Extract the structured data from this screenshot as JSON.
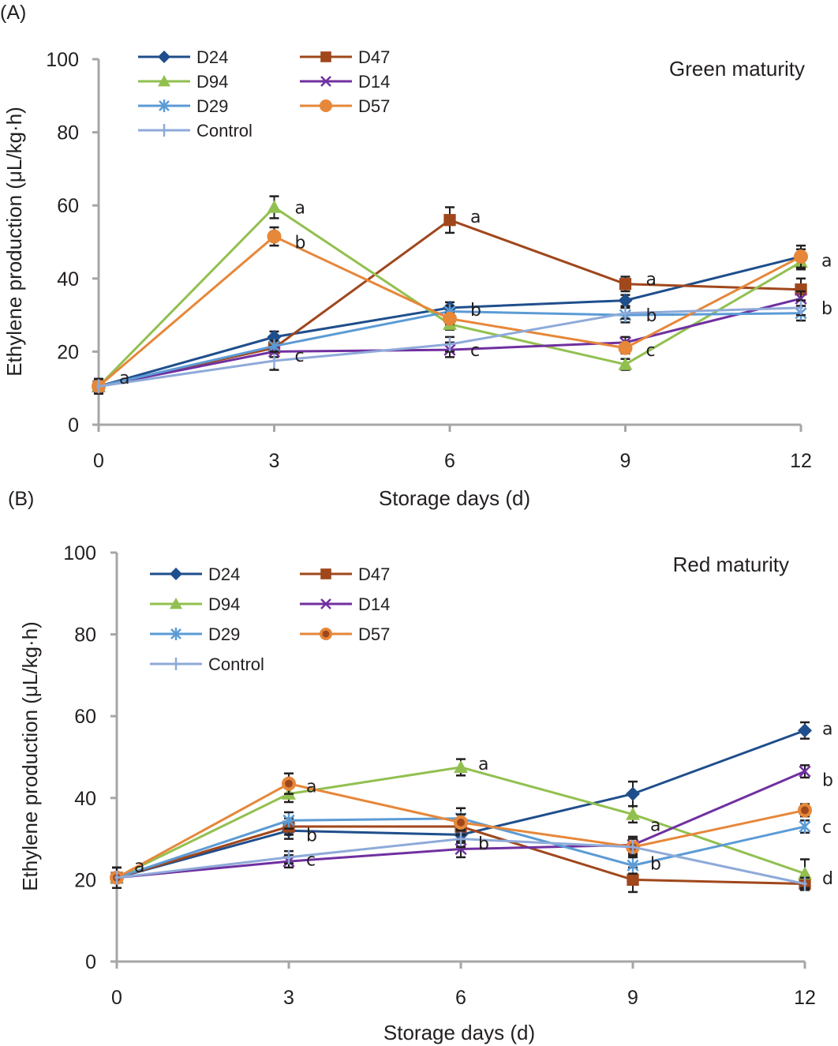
{
  "chart_data": [
    {
      "type": "line",
      "panel_label": "(A)",
      "title": "Green maturity",
      "xlabel": "Storage days (d)",
      "ylabel": "Ethylene production (μL/kg·h)",
      "x": [
        0,
        3,
        6,
        9,
        12
      ],
      "x_tick_labels": [
        "0",
        "3",
        "6",
        "9",
        "12"
      ],
      "y_tick_labels": [
        "0",
        "20",
        "40",
        "60",
        "80",
        "100"
      ],
      "ylim": [
        0,
        100
      ],
      "xlim": [
        0,
        12
      ],
      "grid": false,
      "legend_position": "top-left",
      "series": [
        {
          "name": "D24",
          "color": "#1f4e8c",
          "marker": "diamond",
          "values": [
            10.5,
            24,
            32,
            34,
            46
          ],
          "errors": [
            2,
            1.5,
            1.5,
            1.5,
            2
          ]
        },
        {
          "name": "D47",
          "color": "#a0471c",
          "marker": "square",
          "values": [
            10.5,
            21,
            56,
            38.5,
            37
          ],
          "errors": [
            2,
            1.5,
            3.5,
            2,
            3
          ]
        },
        {
          "name": "D94",
          "color": "#92c050",
          "marker": "triangle",
          "values": [
            10.5,
            59.5,
            27.5,
            16.5,
            44.5
          ],
          "errors": [
            2,
            3,
            1.5,
            1.5,
            2
          ]
        },
        {
          "name": "D14",
          "color": "#7030a0",
          "marker": "x",
          "values": [
            10.5,
            20,
            20.5,
            22.5,
            34.5
          ],
          "errors": [
            2,
            1.5,
            2,
            1.5,
            2
          ]
        },
        {
          "name": "D29",
          "color": "#5b9bd5",
          "marker": "asterisk",
          "values": [
            10.5,
            21.5,
            31,
            30,
            30.5
          ],
          "errors": [
            2,
            1.5,
            1.5,
            2,
            2
          ]
        },
        {
          "name": "D57",
          "color": "#e6873a",
          "marker": "circle",
          "values": [
            10.5,
            51.5,
            29,
            21,
            46
          ],
          "errors": [
            2,
            2.5,
            1.5,
            1.5,
            3
          ]
        },
        {
          "name": "Control",
          "color": "#8eaad9",
          "marker": "plus",
          "values": [
            10.5,
            17.5,
            22,
            30.5,
            32
          ],
          "errors": [
            2,
            2.5,
            2,
            1.5,
            2
          ]
        }
      ],
      "annotations": [
        {
          "x": 0,
          "y": 13,
          "text": "a"
        },
        {
          "x": 3,
          "y": 59.5,
          "text": "a"
        },
        {
          "x": 3,
          "y": 50,
          "text": "b"
        },
        {
          "x": 3,
          "y": 19,
          "text": "c"
        },
        {
          "x": 6,
          "y": 57,
          "text": "a"
        },
        {
          "x": 6,
          "y": 31.5,
          "text": "b"
        },
        {
          "x": 6,
          "y": 20.5,
          "text": "c"
        },
        {
          "x": 9,
          "y": 40,
          "text": "a"
        },
        {
          "x": 9,
          "y": 30,
          "text": "b"
        },
        {
          "x": 9,
          "y": 20.5,
          "text": "c"
        },
        {
          "x": 12,
          "y": 45,
          "text": "a"
        },
        {
          "x": 12,
          "y": 32,
          "text": "b"
        }
      ]
    },
    {
      "type": "line",
      "panel_label": "(B)",
      "title": "Red maturity",
      "xlabel": "Storage days (d)",
      "ylabel": "Ethylene production (μL/kg·h)",
      "x": [
        0,
        3,
        6,
        9,
        12
      ],
      "x_tick_labels": [
        "0",
        "3",
        "6",
        "9",
        "12"
      ],
      "y_tick_labels": [
        "0",
        "20",
        "40",
        "60",
        "80",
        "100"
      ],
      "ylim": [
        0,
        100
      ],
      "xlim": [
        0,
        12
      ],
      "grid": false,
      "legend_position": "top-left",
      "series": [
        {
          "name": "D24",
          "color": "#1f4e8c",
          "marker": "diamond",
          "values": [
            20.5,
            32,
            31,
            41,
            56.5
          ],
          "errors": [
            2.5,
            2,
            2,
            3,
            2
          ]
        },
        {
          "name": "D47",
          "color": "#a0471c",
          "marker": "square",
          "values": [
            20.5,
            33,
            33,
            20,
            19
          ],
          "errors": [
            2.5,
            2,
            2,
            3,
            1.5
          ]
        },
        {
          "name": "D94",
          "color": "#92c050",
          "marker": "triangle",
          "values": [
            20.5,
            41,
            47.5,
            36,
            21.5
          ],
          "errors": [
            2.5,
            2,
            2,
            2,
            3.5
          ]
        },
        {
          "name": "D14",
          "color": "#7030a0",
          "marker": "x",
          "values": [
            20.5,
            24.5,
            27.5,
            28.5,
            46.5
          ],
          "errors": [
            2.5,
            1.5,
            2,
            2,
            1.5
          ]
        },
        {
          "name": "D29",
          "color": "#5b9bd5",
          "marker": "asterisk",
          "values": [
            20.5,
            34.5,
            35,
            23.5,
            33
          ],
          "errors": [
            2.5,
            2,
            2.5,
            2,
            1.5
          ]
        },
        {
          "name": "D57",
          "color": "#e6873a",
          "marker": "circle-dot",
          "values": [
            20.5,
            43.5,
            34,
            28,
            37
          ],
          "errors": [
            2.5,
            2.5,
            2,
            2.5,
            1.5
          ]
        },
        {
          "name": "Control",
          "color": "#8eaad9",
          "marker": "plus",
          "values": [
            20.5,
            25.5,
            30,
            28,
            19
          ],
          "errors": [
            2.5,
            1.5,
            2,
            2,
            1.5
          ]
        }
      ],
      "annotations": [
        {
          "x": 0,
          "y": 23.5,
          "text": "a"
        },
        {
          "x": 3,
          "y": 43,
          "text": "a"
        },
        {
          "x": 3,
          "y": 31,
          "text": "b"
        },
        {
          "x": 3,
          "y": 25,
          "text": "c"
        },
        {
          "x": 6,
          "y": 48.5,
          "text": "a"
        },
        {
          "x": 6,
          "y": 29,
          "text": "b"
        },
        {
          "x": 9,
          "y": 33.5,
          "text": "a"
        },
        {
          "x": 9,
          "y": 24,
          "text": "b"
        },
        {
          "x": 12,
          "y": 57,
          "text": "a"
        },
        {
          "x": 12,
          "y": 44.5,
          "text": "b"
        },
        {
          "x": 12,
          "y": 33,
          "text": "c"
        },
        {
          "x": 12,
          "y": 20.5,
          "text": "d"
        }
      ]
    }
  ]
}
